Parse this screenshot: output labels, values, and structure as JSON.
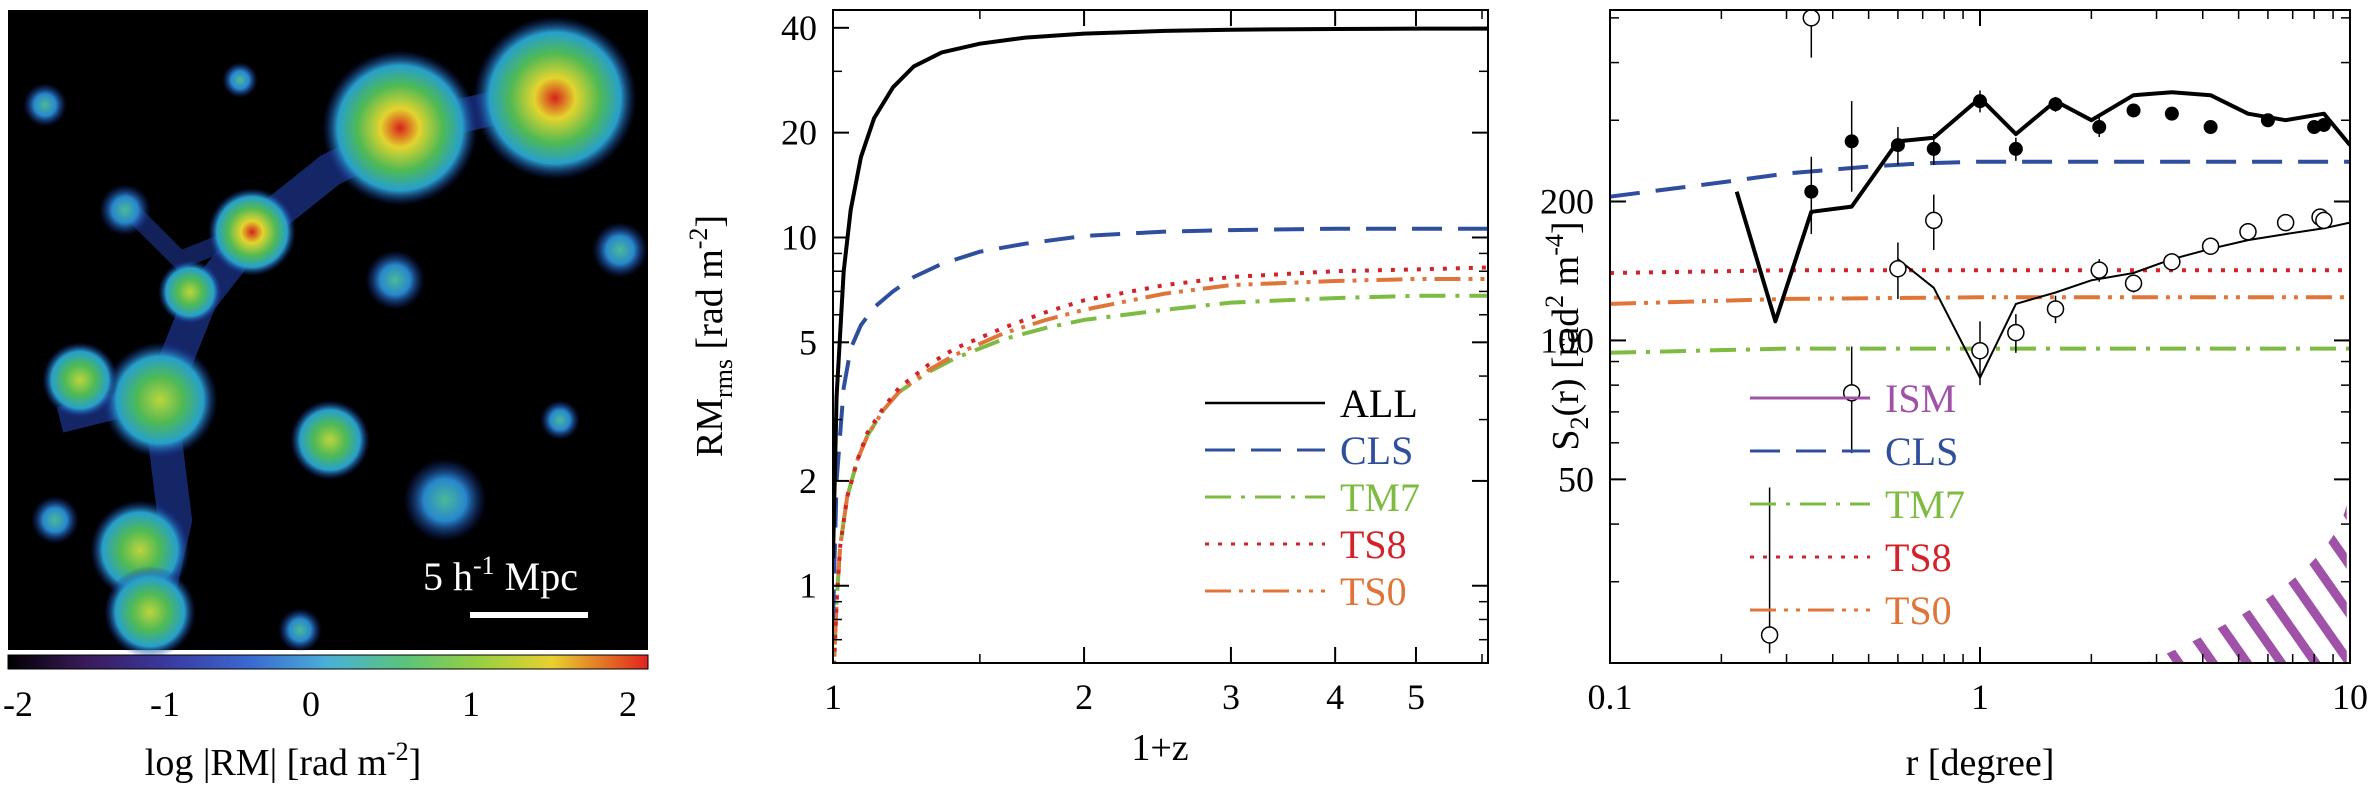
{
  "panel_map": {
    "scale_label": "5 h",
    "scale_sup": "-1",
    "scale_unit": " Mpc",
    "colorbar_ticks": [
      "-2",
      "-1",
      "0",
      "1",
      "2"
    ],
    "colorbar_label": "log |RM| [rad m",
    "colorbar_label_sup": "-2",
    "colorbar_label_end": "]"
  },
  "colors": {
    "ALL": "#000000",
    "CLS": "#2f4f9e",
    "TM7": "#7dbb42",
    "TS8": "#d2232a",
    "TS0": "#e0753a",
    "ISM": "#a052a8"
  },
  "chart_data": [
    {
      "type": "line",
      "title": "",
      "xlabel": "1+z",
      "ylabel_main": "RM",
      "ylabel_sub": "rms",
      "ylabel_rest": " [rad m",
      "ylabel_sup": "-2",
      "ylabel_end": "]",
      "xscale": "log",
      "yscale": "log",
      "xlim": [
        1,
        6.1
      ],
      "ylim": [
        0.6,
        45
      ],
      "xticks": [
        1,
        2,
        3,
        4,
        5
      ],
      "xtick_labels": [
        "1",
        "2",
        "3",
        "4",
        "5"
      ],
      "yticks": [
        1,
        2,
        5,
        10,
        20,
        40
      ],
      "ytick_labels": [
        "1",
        "2",
        "5",
        "10",
        "20",
        "40"
      ],
      "legend_position": "bottom-right",
      "series": [
        {
          "name": "ALL",
          "style": "solid",
          "x": [
            1.0,
            1.01,
            1.03,
            1.05,
            1.08,
            1.12,
            1.18,
            1.25,
            1.35,
            1.5,
            1.7,
            2.0,
            2.5,
            3.0,
            4.0,
            5.0,
            6.1
          ],
          "y": [
            1.2,
            3.5,
            8.0,
            12.0,
            17.0,
            22.0,
            27.0,
            31.0,
            34.0,
            36.0,
            37.5,
            38.5,
            39.2,
            39.5,
            39.7,
            39.8,
            39.8
          ]
        },
        {
          "name": "CLS",
          "style": "dash",
          "x": [
            1.0,
            1.01,
            1.03,
            1.05,
            1.08,
            1.12,
            1.18,
            1.25,
            1.35,
            1.5,
            1.7,
            2.0,
            2.5,
            3.0,
            4.0,
            5.0,
            6.1
          ],
          "y": [
            0.8,
            2.0,
            3.7,
            4.8,
            5.6,
            6.3,
            7.0,
            7.7,
            8.4,
            9.1,
            9.6,
            10.1,
            10.4,
            10.5,
            10.6,
            10.6,
            10.6
          ]
        },
        {
          "name": "TM7",
          "style": "dashdot",
          "x": [
            1.0,
            1.01,
            1.02,
            1.04,
            1.07,
            1.1,
            1.15,
            1.2,
            1.3,
            1.4,
            1.6,
            1.8,
            2.0,
            2.5,
            3.0,
            4.0,
            5.0,
            6.1
          ],
          "y": [
            0.5,
            0.9,
            1.3,
            1.8,
            2.3,
            2.7,
            3.2,
            3.6,
            4.1,
            4.5,
            5.1,
            5.5,
            5.8,
            6.2,
            6.5,
            6.7,
            6.8,
            6.8
          ]
        },
        {
          "name": "TS8",
          "style": "dotted",
          "x": [
            1.0,
            1.01,
            1.02,
            1.04,
            1.07,
            1.1,
            1.15,
            1.2,
            1.3,
            1.4,
            1.6,
            1.8,
            2.0,
            2.5,
            3.0,
            4.0,
            5.0,
            6.1
          ],
          "y": [
            0.5,
            0.9,
            1.3,
            1.8,
            2.3,
            2.75,
            3.25,
            3.7,
            4.3,
            4.8,
            5.5,
            6.1,
            6.6,
            7.3,
            7.7,
            8.0,
            8.1,
            8.2
          ]
        },
        {
          "name": "TS0",
          "style": "dashdotdot",
          "x": [
            1.0,
            1.01,
            1.02,
            1.04,
            1.07,
            1.1,
            1.15,
            1.2,
            1.3,
            1.4,
            1.6,
            1.8,
            2.0,
            2.5,
            3.0,
            4.0,
            5.0,
            6.1
          ],
          "y": [
            0.5,
            0.9,
            1.3,
            1.8,
            2.3,
            2.7,
            3.2,
            3.6,
            4.15,
            4.6,
            5.3,
            5.8,
            6.2,
            6.9,
            7.3,
            7.5,
            7.6,
            7.6
          ]
        }
      ]
    },
    {
      "type": "line",
      "title": "",
      "xlabel": "r [degree]",
      "ylabel_main": "S",
      "ylabel_sub": "2",
      "ylabel_rest": "(r) [rad",
      "ylabel_sup": "2",
      "ylabel_mid": " m",
      "ylabel_sup2": "-4",
      "ylabel_end": "]",
      "xscale": "log",
      "yscale": "log",
      "xlim": [
        0.1,
        10
      ],
      "ylim": [
        20,
        520
      ],
      "xticks": [
        0.1,
        1,
        10
      ],
      "xtick_labels": [
        "0.1",
        "1",
        "10"
      ],
      "yticks": [
        50,
        100,
        200
      ],
      "ytick_labels": [
        "50",
        "100",
        "200"
      ],
      "legend_position": "bottom-left",
      "series": [
        {
          "name": "ISM",
          "style": "hatch",
          "x_edges": [
            2.8,
            4.2,
            5.5,
            7.0,
            9.8
          ],
          "y_top": 44
        },
        {
          "name": "CLS",
          "style": "dash",
          "x": [
            0.1,
            0.2,
            0.3,
            0.5,
            0.7,
            1,
            2,
            5,
            10
          ],
          "y": [
            205,
            220,
            230,
            238,
            242,
            244,
            244,
            244,
            244
          ]
        },
        {
          "name": "TM7",
          "style": "dashdot",
          "x": [
            0.1,
            0.3,
            1,
            3,
            10
          ],
          "y": [
            94,
            96,
            96,
            96,
            96
          ]
        },
        {
          "name": "TS8",
          "style": "dotted",
          "x": [
            0.1,
            0.3,
            1,
            3,
            10
          ],
          "y": [
            140,
            142,
            142,
            142,
            142
          ]
        },
        {
          "name": "TS0",
          "style": "dashdotdot",
          "x": [
            0.1,
            0.3,
            1,
            3,
            10
          ],
          "y": [
            120,
            123,
            124,
            124,
            124
          ]
        },
        {
          "name": "ALL (thick)",
          "style": "solid",
          "x": [
            0.22,
            0.28,
            0.35,
            0.45,
            0.6,
            0.75,
            1.0,
            1.25,
            1.6,
            2.0,
            2.6,
            3.3,
            4.2,
            5.3,
            6.7,
            8.5,
            10
          ],
          "y": [
            210,
            110,
            190,
            195,
            270,
            275,
            335,
            280,
            330,
            300,
            340,
            345,
            340,
            310,
            300,
            310,
            265
          ]
        },
        {
          "name": "ALL (thin)",
          "style": "solid-thin",
          "x": [
            0.22,
            0.28,
            0.35,
            0.45,
            0.6,
            0.75,
            1.0,
            1.25,
            1.6,
            2.0,
            2.6,
            3.3,
            4.2,
            5.3,
            6.7,
            8.5,
            10
          ],
          "y": [
            null,
            null,
            null,
            null,
            150,
            130,
            83,
            120,
            127,
            135,
            140,
            150,
            158,
            165,
            170,
            175,
            180
          ]
        }
      ],
      "points_filled": {
        "x": [
          0.35,
          0.45,
          0.6,
          0.75,
          1.0,
          1.25,
          1.6,
          2.1,
          2.6,
          3.3,
          4.2,
          6.0,
          8.0,
          8.5
        ],
        "y": [
          210,
          270,
          265,
          260,
          330,
          260,
          325,
          290,
          315,
          310,
          290,
          300,
          290,
          293
        ],
        "err": [
          40,
          60,
          25,
          20,
          18,
          15,
          12,
          14,
          10,
          10,
          10,
          10,
          10,
          8
        ]
      },
      "points_open": {
        "x": [
          0.27,
          0.35,
          0.45,
          0.6,
          0.75,
          1.0,
          1.25,
          1.6,
          2.1,
          2.6,
          3.3,
          4.2,
          5.3,
          6.7,
          8.3,
          8.5
        ],
        "y": [
          23,
          500,
          77,
          143,
          182,
          95,
          104,
          117,
          142,
          133,
          148,
          160,
          172,
          180,
          185,
          182
        ],
        "err": [
          25,
          90,
          20,
          20,
          25,
          15,
          10,
          8,
          8,
          6,
          6,
          6,
          6,
          6,
          6,
          5
        ]
      }
    }
  ]
}
